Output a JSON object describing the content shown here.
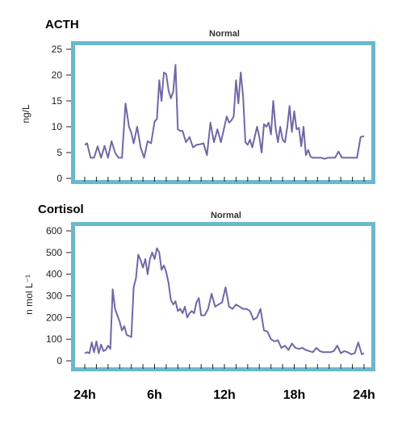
{
  "colors": {
    "frame": "#6ab8cc",
    "line": "#6f68a6",
    "tick": "#222222"
  },
  "x_axis": {
    "hours": [
      0,
      6,
      12,
      18,
      24
    ],
    "tick_labels": [
      "24h",
      "6h",
      "12h",
      "18h",
      "24h"
    ]
  },
  "chart_data": [
    {
      "type": "line",
      "hormone_label": "ACTH",
      "title": "Normal",
      "ylabel": "ng/L",
      "ylim": [
        0,
        25
      ],
      "yticks": [
        0,
        5,
        10,
        15,
        20,
        25
      ],
      "xlim": [
        0,
        24
      ],
      "grid": false,
      "series": [
        {
          "x": [
            0.0,
            0.2,
            0.5,
            0.8,
            1.1,
            1.4,
            1.7,
            2.0,
            2.3,
            2.6,
            2.9,
            3.2,
            3.5,
            3.8,
            4.0,
            4.2,
            4.5,
            4.8,
            5.1,
            5.4,
            5.7,
            6.0,
            6.2,
            6.4,
            6.6,
            6.8,
            7.0,
            7.2,
            7.4,
            7.6,
            7.8,
            8.0,
            8.2,
            8.4,
            8.7,
            9.0,
            9.3,
            9.6,
            9.9,
            10.2,
            10.5,
            10.8,
            11.1,
            11.4,
            11.7,
            12.0,
            12.2,
            12.4,
            12.6,
            12.8,
            13.0,
            13.2,
            13.4,
            13.6,
            13.8,
            14.0,
            14.2,
            14.4,
            14.6,
            14.8,
            15.0,
            15.2,
            15.4,
            15.6,
            15.8,
            16.0,
            16.2,
            16.4,
            16.6,
            16.8,
            17.0,
            17.2,
            17.4,
            17.6,
            17.8,
            18.0,
            18.2,
            18.4,
            18.6,
            18.8,
            19.0,
            19.2,
            19.4,
            19.6,
            19.8,
            20.0,
            20.3,
            20.6,
            20.9,
            21.2,
            21.5,
            21.8,
            22.1,
            22.4,
            22.7,
            23.0,
            23.4,
            23.7,
            24.0
          ],
          "y": [
            6.5,
            6.8,
            4.0,
            4.0,
            6.2,
            4.0,
            6.3,
            4.0,
            7.2,
            5.0,
            4.0,
            4.0,
            14.5,
            10.0,
            8.8,
            6.8,
            10.0,
            6.0,
            4.0,
            7.2,
            6.8,
            11.0,
            11.5,
            19.0,
            15.0,
            20.5,
            20.2,
            17.0,
            15.5,
            16.8,
            22.0,
            9.5,
            9.2,
            9.2,
            7.0,
            8.0,
            6.0,
            6.5,
            6.6,
            6.8,
            4.5,
            10.8,
            7.0,
            9.5,
            7.0,
            10.0,
            12.0,
            10.8,
            11.2,
            12.0,
            19.0,
            14.5,
            20.5,
            16.0,
            7.0,
            6.5,
            7.5,
            6.0,
            8.0,
            10.0,
            8.0,
            5.0,
            10.5,
            10.0,
            10.8,
            8.5,
            15.0,
            9.8,
            7.0,
            10.0,
            7.5,
            7.0,
            10.0,
            14.0,
            9.0,
            13.0,
            9.5,
            9.8,
            6.2,
            10.0,
            4.5,
            5.5,
            4.2,
            4.0,
            4.0,
            4.0,
            4.0,
            3.8,
            4.0,
            4.0,
            4.0,
            5.2,
            4.0,
            4.0,
            4.0,
            4.0,
            4.0,
            8.0,
            8.2
          ]
        }
      ]
    },
    {
      "type": "line",
      "hormone_label": "Cortisol",
      "title": "Normal",
      "ylabel": "n mol L⁻¹",
      "ylim": [
        0,
        600
      ],
      "yticks": [
        0,
        100,
        200,
        300,
        400,
        500,
        600
      ],
      "xlim": [
        0,
        24
      ],
      "grid": false,
      "series": [
        {
          "x": [
            0.0,
            0.2,
            0.4,
            0.6,
            0.8,
            1.0,
            1.2,
            1.4,
            1.6,
            1.8,
            2.0,
            2.2,
            2.4,
            2.6,
            2.8,
            3.0,
            3.2,
            3.4,
            3.6,
            3.8,
            4.0,
            4.2,
            4.4,
            4.6,
            4.8,
            5.0,
            5.2,
            5.4,
            5.6,
            5.8,
            6.0,
            6.2,
            6.4,
            6.6,
            6.8,
            7.0,
            7.2,
            7.4,
            7.6,
            7.8,
            8.0,
            8.2,
            8.4,
            8.6,
            8.8,
            9.0,
            9.2,
            9.4,
            9.6,
            9.8,
            10.0,
            10.3,
            10.6,
            10.9,
            11.2,
            11.5,
            11.8,
            12.1,
            12.4,
            12.7,
            13.0,
            13.3,
            13.6,
            13.9,
            14.2,
            14.5,
            14.8,
            15.1,
            15.4,
            15.7,
            16.0,
            16.3,
            16.6,
            16.9,
            17.2,
            17.5,
            17.8,
            18.1,
            18.4,
            18.7,
            19.0,
            19.3,
            19.6,
            19.9,
            20.2,
            20.5,
            20.8,
            21.1,
            21.4,
            21.7,
            22.0,
            22.3,
            22.6,
            22.9,
            23.2,
            23.5,
            23.8,
            24.0
          ],
          "y": [
            35,
            40,
            35,
            85,
            40,
            90,
            35,
            75,
            45,
            50,
            70,
            55,
            330,
            240,
            210,
            180,
            140,
            160,
            120,
            115,
            110,
            340,
            380,
            490,
            465,
            430,
            470,
            400,
            470,
            500,
            470,
            520,
            500,
            420,
            440,
            410,
            360,
            280,
            260,
            275,
            230,
            240,
            220,
            250,
            200,
            220,
            230,
            220,
            270,
            290,
            210,
            210,
            240,
            310,
            250,
            260,
            270,
            340,
            250,
            240,
            260,
            250,
            240,
            240,
            230,
            190,
            200,
            240,
            140,
            135,
            100,
            90,
            95,
            60,
            70,
            50,
            80,
            60,
            55,
            60,
            50,
            45,
            40,
            60,
            45,
            40,
            40,
            40,
            45,
            70,
            35,
            45,
            40,
            30,
            35,
            85,
            30,
            35
          ]
        }
      ]
    }
  ]
}
